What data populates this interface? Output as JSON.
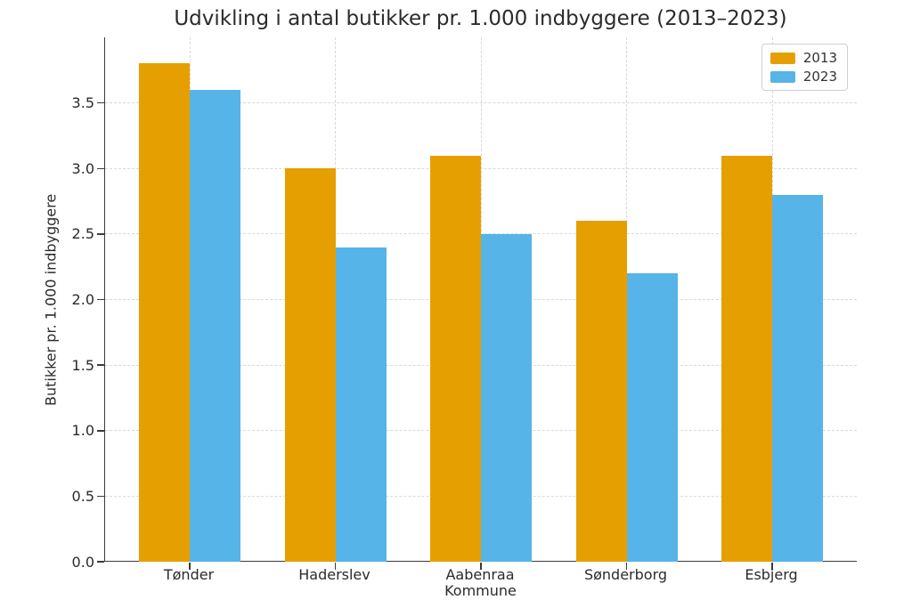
{
  "chart_data": {
    "type": "bar",
    "title": "Udvikling i antal butikker pr. 1.000 indbyggere (2013–2023)",
    "xlabel": "Kommune",
    "ylabel": "Butikker pr. 1.000 indbyggere",
    "categories": [
      "Tønder",
      "Haderslev",
      "Aabenraa",
      "Sønderborg",
      "Esbjerg"
    ],
    "series": [
      {
        "name": "2013",
        "color": "#E69F00",
        "values": [
          3.8,
          3.0,
          3.1,
          2.6,
          3.1
        ]
      },
      {
        "name": "2023",
        "color": "#56B4E9",
        "values": [
          3.6,
          2.4,
          2.5,
          2.2,
          2.8
        ]
      }
    ],
    "ylim": [
      0,
      4.0
    ],
    "yticks": [
      0.0,
      0.5,
      1.0,
      1.5,
      2.0,
      2.5,
      3.0,
      3.5
    ],
    "grid": true,
    "legend_position": "upper right",
    "legend_labels": [
      "2013",
      "2023"
    ]
  }
}
